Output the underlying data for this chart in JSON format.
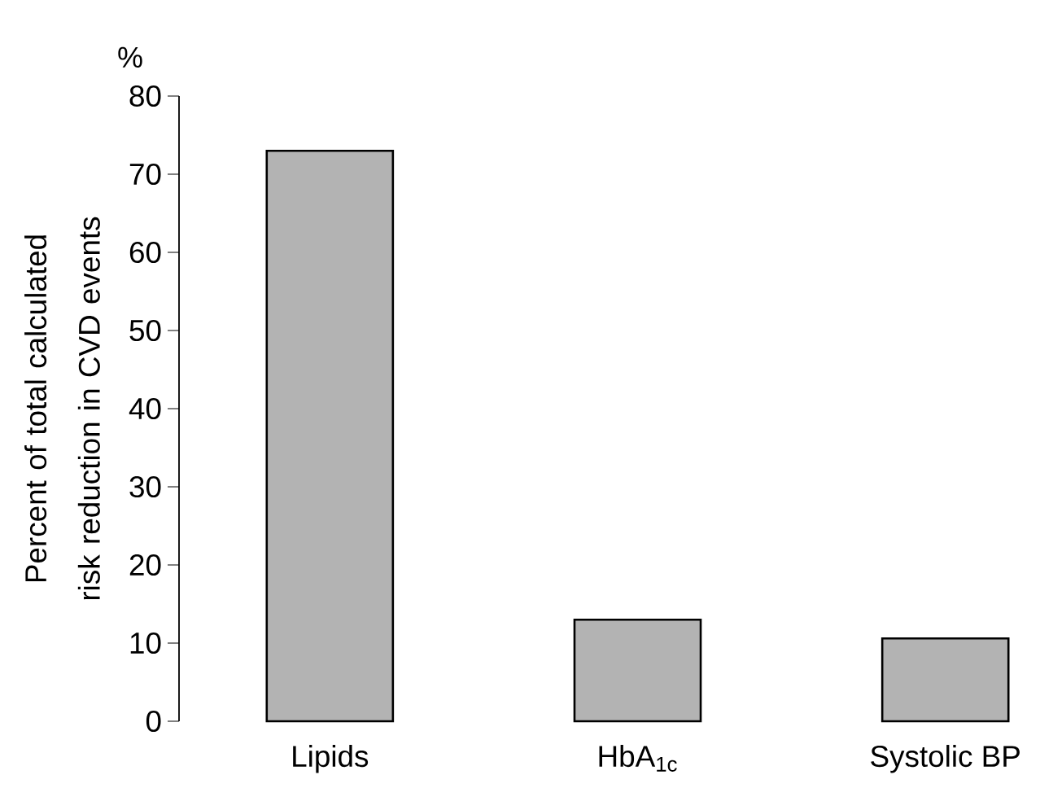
{
  "chart_data": {
    "type": "bar",
    "categories": [
      "Lipids",
      "HbA$_{1c}$",
      "Systolic BP"
    ],
    "values": [
      73,
      13,
      10.6
    ],
    "color": "#b3b3b3",
    "ylabel": "Percent of total calculated risk reduction in CVD events",
    "annotations": [
      "%"
    ],
    "ylim": [
      0,
      80
    ],
    "yticks": [
      0,
      10,
      20,
      30,
      40,
      50,
      60,
      70,
      80
    ]
  }
}
